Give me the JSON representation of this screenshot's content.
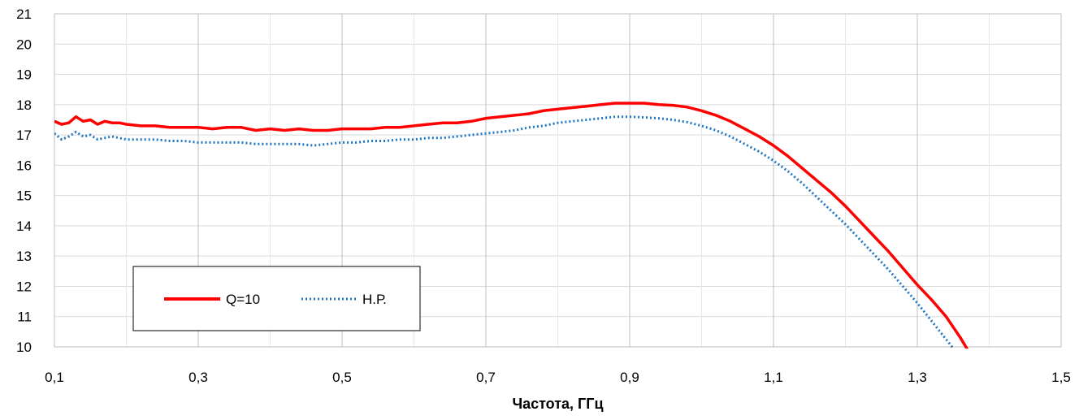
{
  "chart_data": {
    "type": "line",
    "title": "",
    "xlabel": "Частота, ГГц",
    "ylabel": "",
    "xlim": [
      0.1,
      1.5
    ],
    "ylim": [
      10,
      21
    ],
    "x_ticks": [
      "0,1",
      "0,3",
      "0,5",
      "0,7",
      "0,9",
      "1,1",
      "1,3",
      "1,5"
    ],
    "y_ticks": [
      "10",
      "11",
      "12",
      "13",
      "14",
      "15",
      "16",
      "17",
      "18",
      "19",
      "20",
      "21"
    ],
    "grid": true,
    "legend_position": "bottom-left",
    "series": [
      {
        "name": "Q=10",
        "color": "#ff0000",
        "style": "solid",
        "x": [
          0.1,
          0.11,
          0.12,
          0.13,
          0.14,
          0.15,
          0.16,
          0.17,
          0.18,
          0.19,
          0.2,
          0.22,
          0.24,
          0.26,
          0.28,
          0.3,
          0.32,
          0.34,
          0.36,
          0.38,
          0.4,
          0.42,
          0.44,
          0.46,
          0.48,
          0.5,
          0.52,
          0.54,
          0.56,
          0.58,
          0.6,
          0.62,
          0.64,
          0.66,
          0.68,
          0.7,
          0.72,
          0.74,
          0.76,
          0.78,
          0.8,
          0.82,
          0.84,
          0.86,
          0.88,
          0.9,
          0.92,
          0.94,
          0.96,
          0.98,
          1.0,
          1.02,
          1.04,
          1.06,
          1.08,
          1.1,
          1.12,
          1.14,
          1.16,
          1.18,
          1.2,
          1.22,
          1.24,
          1.26,
          1.28,
          1.3,
          1.32,
          1.34,
          1.36,
          1.37
        ],
        "y": [
          17.45,
          17.35,
          17.4,
          17.6,
          17.45,
          17.5,
          17.35,
          17.45,
          17.4,
          17.4,
          17.35,
          17.3,
          17.3,
          17.25,
          17.25,
          17.25,
          17.2,
          17.25,
          17.25,
          17.15,
          17.2,
          17.15,
          17.2,
          17.15,
          17.15,
          17.2,
          17.2,
          17.2,
          17.25,
          17.25,
          17.3,
          17.35,
          17.4,
          17.4,
          17.45,
          17.55,
          17.6,
          17.65,
          17.7,
          17.8,
          17.85,
          17.9,
          17.95,
          18.0,
          18.05,
          18.05,
          18.05,
          18.0,
          17.98,
          17.92,
          17.8,
          17.65,
          17.45,
          17.2,
          16.95,
          16.65,
          16.3,
          15.9,
          15.5,
          15.1,
          14.65,
          14.15,
          13.65,
          13.15,
          12.6,
          12.05,
          11.55,
          11.0,
          10.3,
          9.9
        ]
      },
      {
        "name": "Н.Р.",
        "color": "#1f77c4",
        "style": "dotted",
        "x": [
          0.1,
          0.11,
          0.12,
          0.13,
          0.14,
          0.15,
          0.16,
          0.17,
          0.18,
          0.19,
          0.2,
          0.22,
          0.24,
          0.26,
          0.28,
          0.3,
          0.32,
          0.34,
          0.36,
          0.38,
          0.4,
          0.42,
          0.44,
          0.46,
          0.48,
          0.5,
          0.52,
          0.54,
          0.56,
          0.58,
          0.6,
          0.62,
          0.64,
          0.66,
          0.68,
          0.7,
          0.72,
          0.74,
          0.76,
          0.78,
          0.8,
          0.82,
          0.84,
          0.86,
          0.88,
          0.9,
          0.92,
          0.94,
          0.96,
          0.98,
          1.0,
          1.02,
          1.04,
          1.06,
          1.08,
          1.1,
          1.12,
          1.14,
          1.16,
          1.18,
          1.2,
          1.22,
          1.24,
          1.26,
          1.28,
          1.3,
          1.32,
          1.34,
          1.35
        ],
        "y": [
          17.05,
          16.85,
          16.95,
          17.1,
          16.95,
          17.0,
          16.85,
          16.9,
          16.95,
          16.9,
          16.85,
          16.85,
          16.85,
          16.8,
          16.8,
          16.75,
          16.75,
          16.75,
          16.75,
          16.7,
          16.7,
          16.7,
          16.7,
          16.65,
          16.7,
          16.75,
          16.75,
          16.8,
          16.8,
          16.85,
          16.85,
          16.9,
          16.9,
          16.95,
          17.0,
          17.05,
          17.1,
          17.15,
          17.25,
          17.3,
          17.4,
          17.45,
          17.5,
          17.55,
          17.6,
          17.6,
          17.58,
          17.55,
          17.5,
          17.42,
          17.3,
          17.15,
          16.95,
          16.7,
          16.45,
          16.15,
          15.8,
          15.4,
          14.95,
          14.5,
          14.05,
          13.55,
          13.05,
          12.55,
          12.0,
          11.45,
          10.85,
          10.25,
          9.95
        ]
      }
    ]
  }
}
